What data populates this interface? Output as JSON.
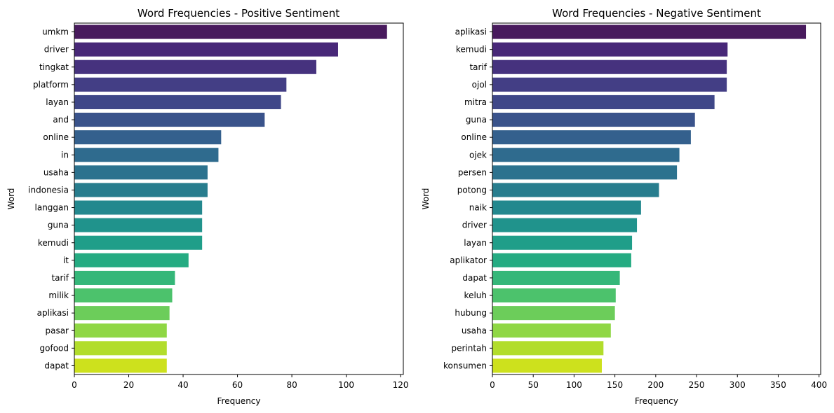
{
  "chart_data": [
    {
      "type": "bar",
      "orientation": "horizontal",
      "title": "Word Frequencies - Positive Sentiment",
      "xlabel": "Frequency",
      "ylabel": "Word",
      "xlim": [
        0,
        121
      ],
      "xticks": [
        0,
        20,
        40,
        60,
        80,
        100,
        120
      ],
      "categories": [
        "umkm",
        "driver",
        "tingkat",
        "platform",
        "layan",
        "and",
        "online",
        "in",
        "usaha",
        "indonesia",
        "langgan",
        "guna",
        "kemudi",
        "it",
        "tarif",
        "milik",
        "aplikasi",
        "pasar",
        "gofood",
        "dapat"
      ],
      "values": [
        115,
        97,
        89,
        78,
        76,
        70,
        54,
        53,
        49,
        49,
        47,
        47,
        47,
        42,
        37,
        36,
        35,
        34,
        34,
        34
      ],
      "colors": [
        "#481a5d",
        "#482878",
        "#46327e",
        "#433e85",
        "#3f4788",
        "#3a538b",
        "#34608d",
        "#2f6b8e",
        "#2c728e",
        "#287d8e",
        "#23888e",
        "#20938c",
        "#1f9e89",
        "#25ab82",
        "#35b779",
        "#4cc26c",
        "#6ccd5a",
        "#8fd744",
        "#b2dd2c",
        "#cde11d"
      ],
      "grid": false,
      "legend": "none"
    },
    {
      "type": "bar",
      "orientation": "horizontal",
      "title": "Word Frequencies - Negative Sentiment",
      "xlabel": "Frequency",
      "ylabel": "Word",
      "xlim": [
        0,
        402
      ],
      "xticks": [
        0,
        50,
        100,
        150,
        200,
        250,
        300,
        350,
        400
      ],
      "categories": [
        "aplikasi",
        "kemudi",
        "tarif",
        "ojol",
        "mitra",
        "guna",
        "online",
        "ojek",
        "persen",
        "potong",
        "naik",
        "driver",
        "layan",
        "aplikator",
        "dapat",
        "keluh",
        "hubung",
        "usaha",
        "perintah",
        "konsumen"
      ],
      "values": [
        384,
        288,
        287,
        287,
        272,
        248,
        243,
        229,
        226,
        204,
        182,
        177,
        171,
        170,
        156,
        151,
        150,
        145,
        136,
        134
      ],
      "colors": [
        "#481a5d",
        "#482878",
        "#46327e",
        "#433e85",
        "#3f4788",
        "#3a538b",
        "#34608d",
        "#2f6b8e",
        "#2c728e",
        "#287d8e",
        "#23888e",
        "#20938c",
        "#1f9e89",
        "#25ab82",
        "#35b779",
        "#4cc26c",
        "#6ccd5a",
        "#8fd744",
        "#b2dd2c",
        "#cde11d"
      ],
      "grid": false,
      "legend": "none"
    }
  ]
}
